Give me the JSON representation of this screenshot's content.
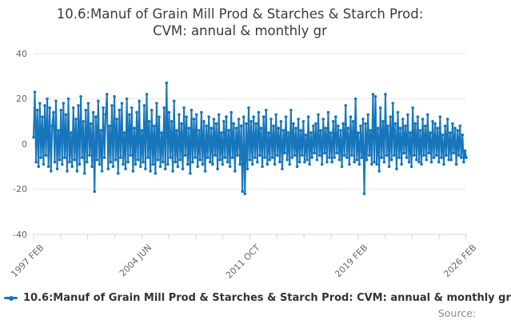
{
  "title": {
    "text": "10.6:Manuf of Grain Mill Prod & Starches & Starch Prod: CVM: annual & monthly gr",
    "lines": [
      "10.6:Manuf of Grain Mill Prod & Starches & Starch Prod:",
      "CVM: annual & monthly gr"
    ]
  },
  "legend": {
    "label": "10.6:Manuf of Grain Mill Prod & Starches & Starch Prod: CVM: annual & monthly gr",
    "marker": "line-with-dot"
  },
  "footer": {
    "source_label": "Source:"
  },
  "colors": {
    "line": "#1776bb",
    "grid": "#e6e6e6",
    "axis": "#ccd6e0",
    "tick_text": "#666666",
    "title_text": "#3b3b3b"
  },
  "chart_data": {
    "type": "line",
    "title": "10.6:Manuf of Grain Mill Prod & Starches & Starch Prod: CVM: annual & monthly gr",
    "xlabel": "",
    "ylabel": "",
    "ylim": [
      -40,
      40
    ],
    "y_ticks": [
      40,
      20,
      0,
      -20,
      -40
    ],
    "grid": "horizontal",
    "legend_position": "bottom-left",
    "x_start": "1997 FEB",
    "x_end": "2026 FEB",
    "x_tick_labels": [
      "1997 FEB",
      "2004 JUN",
      "2011 OCT",
      "2019 FEB",
      "2026 FEB"
    ],
    "x_minor_tick_count": 17,
    "series_name": "10.6:Manuf of Grain Mill Prod & Starches & Starch Prod: CVM: annual & monthly gr",
    "frequency": "monthly",
    "values": [
      3,
      23,
      -8,
      15,
      -10,
      18,
      -6,
      12,
      -9,
      17,
      -5,
      20,
      -10,
      16,
      -12,
      8,
      14,
      -8,
      19,
      -11,
      6,
      -7,
      15,
      -9,
      18,
      -6,
      13,
      -12,
      20,
      -8,
      5,
      -10,
      16,
      -7,
      11,
      -12,
      17,
      -9,
      21,
      -6,
      10,
      -13,
      15,
      -8,
      18,
      -5,
      9,
      -10,
      14,
      -21,
      12,
      -7,
      19,
      -9,
      6,
      -12,
      16,
      -6,
      13,
      22,
      -11,
      8,
      -8,
      17,
      -10,
      21,
      -7,
      11,
      -13,
      15,
      -6,
      18,
      -9,
      5,
      -11,
      20,
      -8,
      13,
      -5,
      16,
      -12,
      7,
      -9,
      14,
      -7,
      19,
      -10,
      6,
      -8,
      17,
      -11,
      22,
      -6,
      10,
      -12,
      15,
      -9,
      8,
      -13,
      18,
      -7,
      12,
      -10,
      5,
      -8,
      16,
      -11,
      27,
      -9,
      14,
      -6,
      10,
      -12,
      19,
      -8,
      6,
      -10,
      13,
      -7,
      9,
      -11,
      16,
      -5,
      12,
      -9,
      7,
      -13,
      15,
      -8,
      11,
      -6,
      13,
      -10,
      6,
      -7,
      14,
      -9,
      10,
      -12,
      8,
      -6,
      12,
      -8,
      7,
      -9,
      11,
      -5,
      9,
      -11,
      13,
      -7,
      5,
      -9,
      10,
      -6,
      12,
      -8,
      6,
      -10,
      14,
      -6,
      9,
      -12,
      7,
      -5,
      11,
      -9,
      8,
      -21,
      12,
      -22,
      9,
      -11,
      16,
      -7,
      10,
      -9,
      12,
      -6,
      9,
      -8,
      14,
      -5,
      7,
      -10,
      12,
      -6,
      15,
      -9,
      5,
      -7,
      11,
      -6,
      8,
      -9,
      13,
      -5,
      7,
      -8,
      10,
      -11,
      6,
      -4,
      12,
      -7,
      5,
      -9,
      15,
      -6,
      9,
      -5,
      7,
      -10,
      11,
      -8,
      6,
      -5,
      10,
      -8,
      4,
      -7,
      12,
      -9,
      5,
      -6,
      8,
      -4,
      9,
      -7,
      13,
      -5,
      6,
      -9,
      11,
      -4,
      7,
      -8,
      14,
      -6,
      5,
      -8,
      10,
      -6,
      12,
      -4,
      8,
      -7,
      6,
      -10,
      9,
      -5,
      17,
      -6,
      7,
      -9,
      12,
      -5,
      10,
      -8,
      20,
      -7,
      5,
      -9,
      8,
      -6,
      11,
      -22,
      9,
      -7,
      13,
      -5,
      6,
      -9,
      22,
      -8,
      21,
      -9,
      7,
      -12,
      16,
      -6,
      10,
      -8,
      22,
      -5,
      8,
      -10,
      12,
      -7,
      18,
      -5,
      9,
      -11,
      14,
      -6,
      7,
      -9,
      11,
      -4,
      8,
      -6,
      13,
      -8,
      5,
      -10,
      16,
      -5,
      9,
      -7,
      12,
      -8,
      6,
      -9,
      11,
      -5,
      8,
      -7,
      13,
      -4,
      5,
      -8,
      10,
      -6,
      9,
      -5,
      7,
      -8,
      12,
      -6,
      4,
      -9,
      8,
      -5,
      11,
      -7,
      5,
      -7,
      9,
      -4,
      7,
      -9,
      6,
      -5,
      8,
      -6,
      4,
      -8,
      -3,
      -6
    ]
  }
}
